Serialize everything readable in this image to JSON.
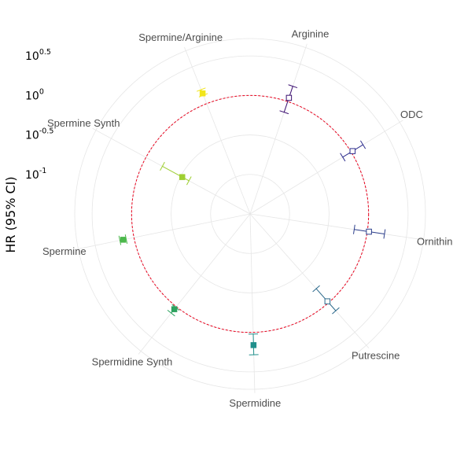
{
  "chart_data": {
    "type": "scatter",
    "coordinate_system": "polar",
    "title": "",
    "ylabel": "HR (95% CI)",
    "y_scale": "log10",
    "y_ticks": [
      {
        "value": 0.1,
        "base": "10",
        "exp": "-1"
      },
      {
        "value": 0.316,
        "base": "10",
        "exp": "-0.5"
      },
      {
        "value": 1.0,
        "base": "10",
        "exp": "0"
      },
      {
        "value": 3.162,
        "base": "10",
        "exp": "0.5"
      }
    ],
    "reference_line": {
      "value": 1.0,
      "style": "dashed",
      "color": "#e8001c"
    },
    "grid": true,
    "legend": "none",
    "points": [
      {
        "category": "Arginine",
        "hr": 1.12,
        "lo": 0.72,
        "hi": 1.6,
        "marker": "open-square",
        "color": "#3b0f70"
      },
      {
        "category": "ODC",
        "hr": 1.05,
        "lo": 0.75,
        "hi": 1.5,
        "marker": "open-square",
        "color": "#2f2f8e"
      },
      {
        "category": "Ornithine",
        "hr": 1.05,
        "lo": 0.68,
        "hi": 1.66,
        "marker": "open-square",
        "color": "#2c3f8c"
      },
      {
        "category": "Putrescine",
        "hr": 0.95,
        "lo": 0.58,
        "hi": 1.37,
        "marker": "open-square",
        "color": "#2c6a8c"
      },
      {
        "category": "Spermidine",
        "hr": 1.45,
        "lo": 1.05,
        "hi": 1.92,
        "marker": "filled-square",
        "color": "#21908c"
      },
      {
        "category": "Spermidine Synth",
        "hr": 1.1,
        "lo": 1.03,
        "hi": 1.27,
        "marker": "filled-square",
        "color": "#2ca25f"
      },
      {
        "category": "Spermine",
        "hr": 1.38,
        "lo": 1.26,
        "hi": 1.52,
        "marker": "filled-square",
        "color": "#4cb84c"
      },
      {
        "category": "Spermine Synth",
        "hr": 0.3,
        "lo": 0.24,
        "hi": 0.58,
        "marker": "filled-square",
        "color": "#9ecf32"
      },
      {
        "category": "Spermine/Arginine",
        "hr": 1.38,
        "lo": 1.3,
        "hi": 1.55,
        "marker": "filled-square",
        "color": "#f2e61c"
      }
    ]
  }
}
